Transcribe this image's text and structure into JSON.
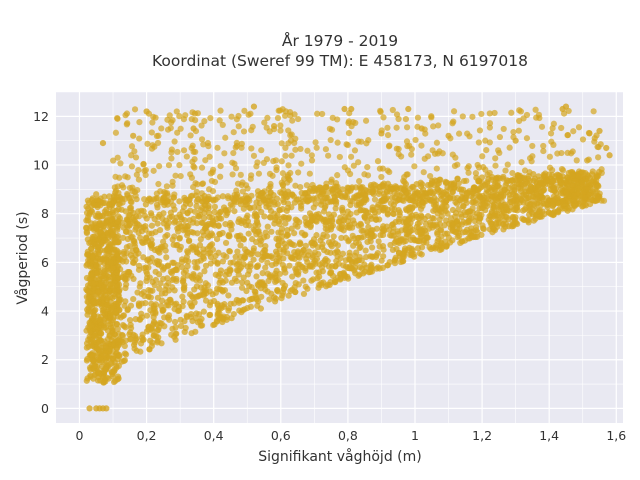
{
  "chart_data": {
    "type": "scatter",
    "title_line1": "År 1979 - 2019",
    "title_line2": "Koordinat (Sweref 99 TM): E 458173, N 6197018",
    "xlabel": "Signifikant våghöjd (m)",
    "ylabel": "Vågperiod (s)",
    "xlim": [
      -0.07,
      1.62
    ],
    "ylim": [
      -0.6,
      13
    ],
    "x_ticks": [
      0,
      0.2,
      0.4,
      0.6,
      0.8,
      1,
      1.2,
      1.4,
      1.6
    ],
    "x_tick_labels": [
      "0",
      "0,2",
      "0,4",
      "0,6",
      "0,8",
      "1",
      "1,2",
      "1,4",
      "1,6"
    ],
    "y_ticks": [
      0,
      2,
      4,
      6,
      8,
      10,
      12
    ],
    "y_tick_labels": [
      "0",
      "2",
      "4",
      "6",
      "8",
      "10",
      "12"
    ],
    "grid": true,
    "marker_color": "#D4A520",
    "background_color": "#E9E9F2",
    "point_clouds": [
      {
        "name": "main-band",
        "x_range": [
          0.03,
          1.55
        ],
        "y_lower": [
          1.2,
          8.5
        ],
        "y_upper": [
          8.5,
          9.8
        ]
      },
      {
        "name": "upper-scatter",
        "x_range": [
          0.1,
          1.57
        ],
        "y_range": [
          8.5,
          12.3
        ]
      },
      {
        "name": "low-wave-column",
        "x_range": [
          0.02,
          0.12
        ],
        "y_range": [
          1.0,
          8.8
        ]
      }
    ],
    "points": [
      {
        "x": 0.03,
        "y": 0
      },
      {
        "x": 0.05,
        "y": 0
      },
      {
        "x": 0.06,
        "y": 0
      },
      {
        "x": 0.07,
        "y": 0
      },
      {
        "x": 0.08,
        "y": 0
      },
      {
        "x": 0.52,
        "y": 12.4
      },
      {
        "x": 0.79,
        "y": 12.3
      },
      {
        "x": 0.81,
        "y": 12.3
      },
      {
        "x": 0.98,
        "y": 12.3
      },
      {
        "x": 1.44,
        "y": 12.3
      },
      {
        "x": 1.45,
        "y": 12.4
      },
      {
        "x": 0.2,
        "y": 12.2
      },
      {
        "x": 1.52,
        "y": 11.3
      },
      {
        "x": 1.55,
        "y": 11.4
      },
      {
        "x": 1.57,
        "y": 10.7
      },
      {
        "x": 1.58,
        "y": 10.4
      },
      {
        "x": 0.16,
        "y": 11.2
      },
      {
        "x": 0.34,
        "y": 11.5
      },
      {
        "x": 0.58,
        "y": 11.6
      },
      {
        "x": 0.9,
        "y": 11.3
      },
      {
        "x": 1.1,
        "y": 11.2
      },
      {
        "x": 1.3,
        "y": 11.0
      },
      {
        "x": 0.07,
        "y": 10.9
      },
      {
        "x": 1.02,
        "y": 11.5
      }
    ]
  }
}
